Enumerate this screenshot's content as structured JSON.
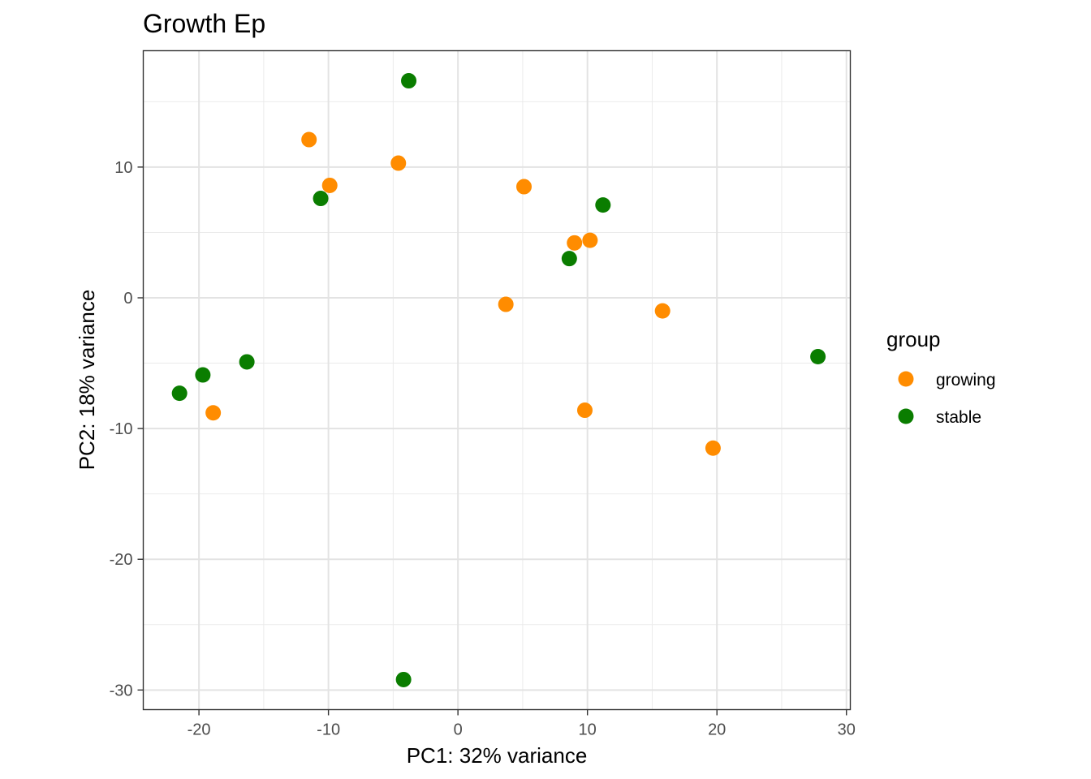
{
  "chart_data": {
    "type": "scatter",
    "title": "Growth Ep",
    "xlabel": "PC1: 32% variance",
    "ylabel": "PC2: 18% variance",
    "xlim": [
      -24.3,
      30.3
    ],
    "ylim": [
      -31.5,
      18.9
    ],
    "xticks": [
      -20,
      -10,
      0,
      10,
      20,
      30
    ],
    "yticks": [
      10,
      0,
      -10,
      -20,
      -30
    ],
    "xtick_labels": [
      "-20",
      "-10",
      "0",
      "10",
      "20",
      "30"
    ],
    "ytick_labels": [
      "10",
      "0",
      "-10",
      "-20",
      "-30"
    ],
    "grid": true,
    "legend": {
      "title": "group",
      "position": "right",
      "entries": [
        "growing",
        "stable"
      ]
    },
    "series": [
      {
        "name": "growing",
        "color": "#ff8c00",
        "points": [
          {
            "x": -11.5,
            "y": 12.1
          },
          {
            "x": -9.9,
            "y": 8.6
          },
          {
            "x": -4.6,
            "y": 10.3
          },
          {
            "x": 5.1,
            "y": 8.5
          },
          {
            "x": 9.0,
            "y": 4.2
          },
          {
            "x": 10.2,
            "y": 4.4
          },
          {
            "x": 3.7,
            "y": -0.5
          },
          {
            "x": 15.8,
            "y": -1.0
          },
          {
            "x": 9.8,
            "y": -8.6
          },
          {
            "x": 19.7,
            "y": -11.5
          },
          {
            "x": -18.9,
            "y": -8.8
          }
        ]
      },
      {
        "name": "stable",
        "color": "#0a7d00",
        "points": [
          {
            "x": -3.8,
            "y": 16.6
          },
          {
            "x": -10.6,
            "y": 7.6
          },
          {
            "x": 11.2,
            "y": 7.1
          },
          {
            "x": 8.6,
            "y": 3.0
          },
          {
            "x": 27.8,
            "y": -4.5
          },
          {
            "x": -16.3,
            "y": -4.9
          },
          {
            "x": -19.7,
            "y": -5.9
          },
          {
            "x": -21.5,
            "y": -7.3
          },
          {
            "x": -4.2,
            "y": -29.2
          }
        ]
      }
    ]
  }
}
